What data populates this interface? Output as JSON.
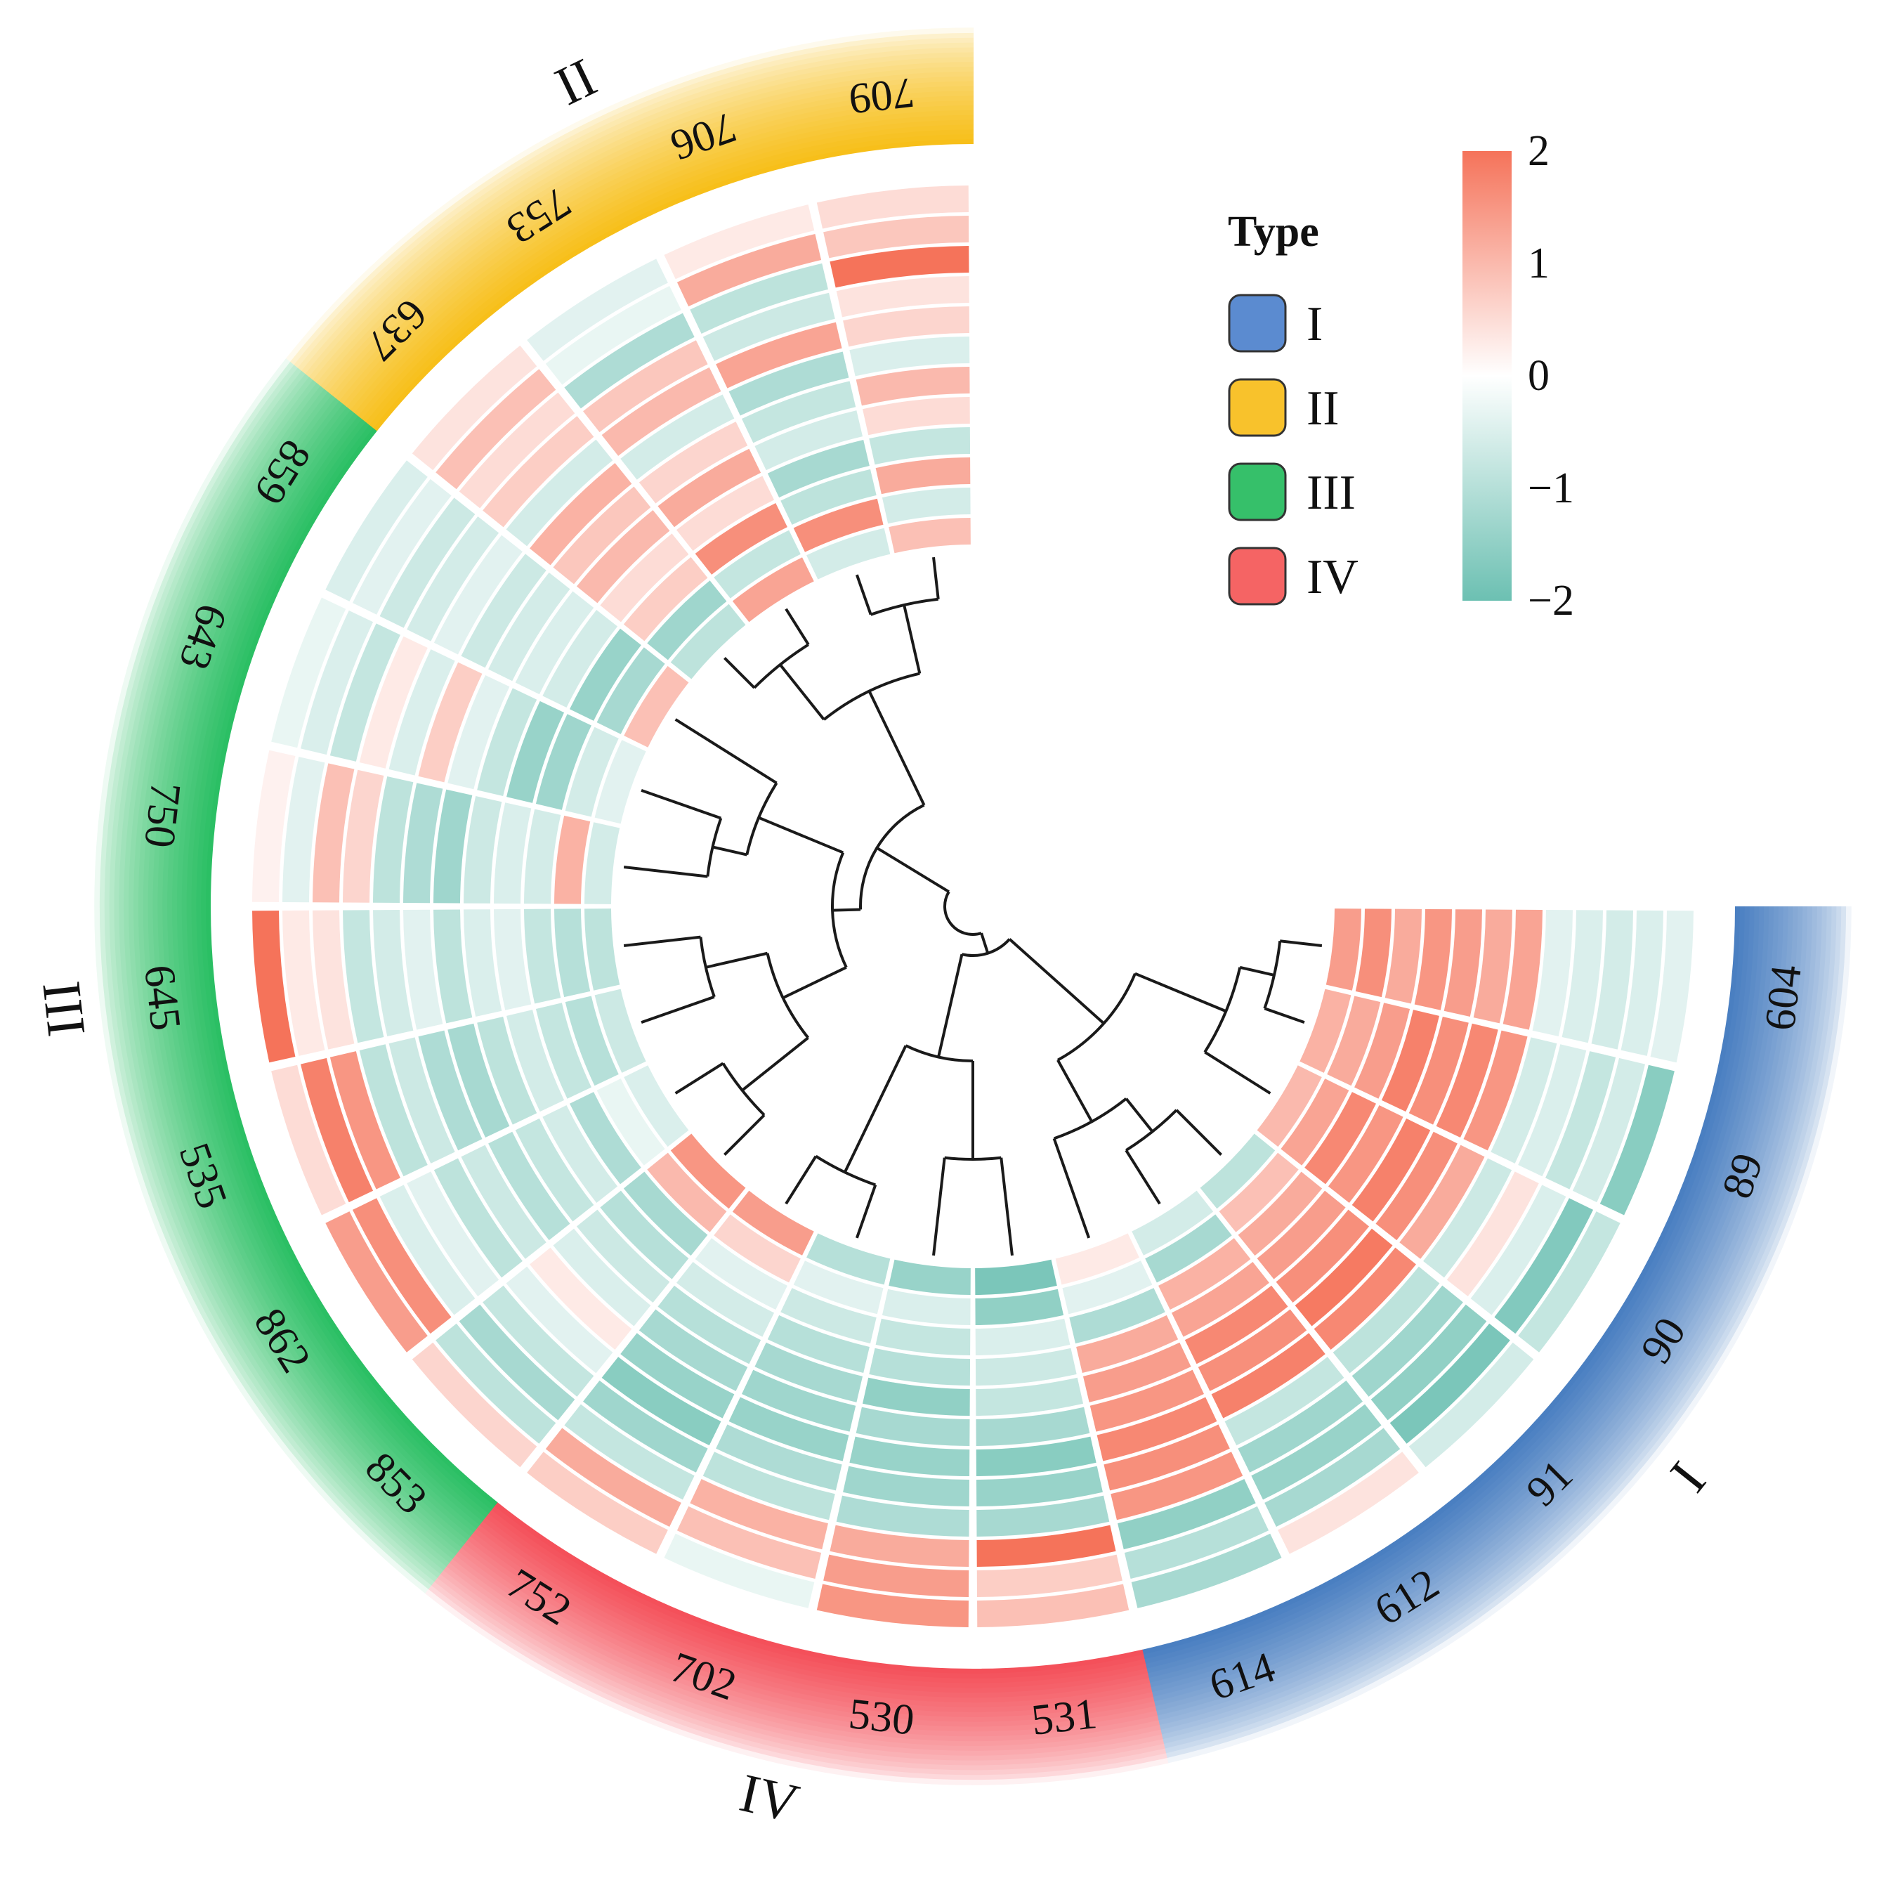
{
  "chart_data": {
    "type": "heatmap",
    "title": "",
    "layout": "circular",
    "n_tracks": 12,
    "value_range": [
      -2,
      2
    ],
    "sectors": [
      {
        "id": "604",
        "type": "I"
      },
      {
        "id": "89",
        "type": "I"
      },
      {
        "id": "90",
        "type": "I"
      },
      {
        "id": "91",
        "type": "I"
      },
      {
        "id": "612",
        "type": "I"
      },
      {
        "id": "614",
        "type": "I"
      },
      {
        "id": "531",
        "type": "IV"
      },
      {
        "id": "530",
        "type": "IV"
      },
      {
        "id": "702",
        "type": "IV"
      },
      {
        "id": "752",
        "type": "IV"
      },
      {
        "id": "853",
        "type": "III"
      },
      {
        "id": "862",
        "type": "III"
      },
      {
        "id": "535",
        "type": "III"
      },
      {
        "id": "645",
        "type": "III"
      },
      {
        "id": "750",
        "type": "III"
      },
      {
        "id": "643",
        "type": "III"
      },
      {
        "id": "859",
        "type": "III"
      },
      {
        "id": "637",
        "type": "II"
      },
      {
        "id": "753",
        "type": "II"
      },
      {
        "id": "706",
        "type": "II"
      },
      {
        "id": "709",
        "type": "II"
      }
    ],
    "values": [
      [
        -0.4,
        -0.5,
        -0.6,
        -0.5,
        -0.4,
        1.3,
        1.2,
        1.4,
        1.5,
        1.2,
        1.6,
        1.4
      ],
      [
        -1.6,
        -0.6,
        -0.8,
        -0.5,
        -0.6,
        1.5,
        1.7,
        1.6,
        1.8,
        1.4,
        1.2,
        1.1
      ],
      [
        -0.8,
        -1.7,
        -0.5,
        0.4,
        -0.7,
        1.2,
        1.6,
        1.8,
        1.5,
        1.7,
        1.3,
        1.0
      ],
      [
        -0.6,
        -1.8,
        -1.5,
        -1.3,
        -0.9,
        1.7,
        1.9,
        1.6,
        1.4,
        1.2,
        0.9,
        -0.9
      ],
      [
        0.4,
        -1.2,
        -1.4,
        -1.3,
        -0.8,
        1.8,
        1.6,
        1.7,
        1.3,
        1.1,
        -1.2,
        -0.6
      ],
      [
        -1.2,
        -1.0,
        -1.5,
        1.5,
        1.6,
        1.7,
        1.5,
        1.4,
        1.2,
        -1.1,
        -0.4,
        0.3
      ],
      [
        0.9,
        0.7,
        2.2,
        -1.2,
        -1.4,
        -1.6,
        -1.2,
        -0.8,
        -0.7,
        -0.5,
        -1.5,
        -1.8
      ],
      [
        1.5,
        1.4,
        1.2,
        -1.1,
        -1.3,
        -1.4,
        -1.2,
        -1.5,
        -1.0,
        -0.8,
        -0.5,
        -1.4
      ],
      [
        -0.3,
        0.9,
        1.1,
        -0.9,
        -1.1,
        -1.4,
        -1.3,
        -1.2,
        -1.0,
        -0.7,
        -0.4,
        -1.0
      ],
      [
        0.7,
        1.2,
        -0.8,
        -1.3,
        -1.6,
        -1.4,
        -1.2,
        -1.0,
        -0.6,
        -0.4,
        0.6,
        1.4
      ],
      [
        0.6,
        -0.9,
        -1.2,
        -0.8,
        -0.4,
        0.3,
        -0.5,
        -0.7,
        -1.0,
        -1.2,
        1.0,
        1.5
      ],
      [
        1.4,
        1.6,
        -0.5,
        -0.4,
        -0.9,
        -0.7,
        -1.0,
        -0.8,
        -0.6,
        -1.1,
        -0.3,
        -0.5
      ],
      [
        0.5,
        1.8,
        1.5,
        -0.9,
        -0.7,
        -1.1,
        -1.2,
        -0.9,
        -0.6,
        -0.8,
        -1.0,
        -0.7
      ],
      [
        2.0,
        0.3,
        0.4,
        -0.8,
        -0.6,
        -0.4,
        -0.9,
        -0.5,
        -0.4,
        -0.8,
        -1.0,
        -0.9
      ],
      [
        0.2,
        -0.4,
        0.9,
        0.6,
        -0.9,
        -1.1,
        -1.3,
        -0.7,
        -0.5,
        -0.6,
        1.1,
        -0.6
      ],
      [
        -0.3,
        -0.5,
        -0.8,
        0.3,
        -0.5,
        0.7,
        -0.4,
        -0.8,
        -1.4,
        -1.3,
        -0.6,
        -0.4
      ],
      [
        -0.5,
        -0.4,
        -0.7,
        -0.6,
        -0.4,
        -0.7,
        -0.6,
        -0.5,
        -0.6,
        -1.4,
        -1.2,
        0.9
      ],
      [
        0.4,
        0.9,
        0.5,
        0.7,
        -0.6,
        1.1,
        0.8,
        1.0,
        0.5,
        0.7,
        -1.3,
        -0.9
      ],
      [
        -0.4,
        -0.3,
        -1.1,
        0.8,
        1.0,
        -0.6,
        0.6,
        1.2,
        0.5,
        1.6,
        -0.8,
        1.3
      ],
      [
        0.3,
        1.2,
        -0.9,
        -0.7,
        1.3,
        -1.1,
        -0.8,
        -0.6,
        -1.2,
        -0.9,
        1.6,
        -0.6
      ],
      [
        0.5,
        0.8,
        2.2,
        0.4,
        0.6,
        -0.5,
        1.0,
        0.5,
        -0.8,
        1.2,
        -0.6,
        0.9
      ]
    ],
    "type_groups": [
      {
        "label": "I",
        "color": "#4a7fc1"
      },
      {
        "label": "IV",
        "color": "#f4505a"
      },
      {
        "label": "III",
        "color": "#2bbf64"
      },
      {
        "label": "II",
        "color": "#f7bf1a"
      }
    ],
    "legend": {
      "title": "Type",
      "items": [
        {
          "label": "I",
          "color": "#5b8bd0"
        },
        {
          "label": "II",
          "color": "#f8c22c"
        },
        {
          "label": "III",
          "color": "#36c06a"
        },
        {
          "label": "IV",
          "color": "#f56464"
        }
      ]
    },
    "colorbar": {
      "ticks": [
        "2",
        "1",
        "0",
        "−1",
        "−2"
      ],
      "colors": {
        "high": "#f5735a",
        "mid": "#ffffff",
        "low": "#6cc0b2"
      }
    }
  }
}
